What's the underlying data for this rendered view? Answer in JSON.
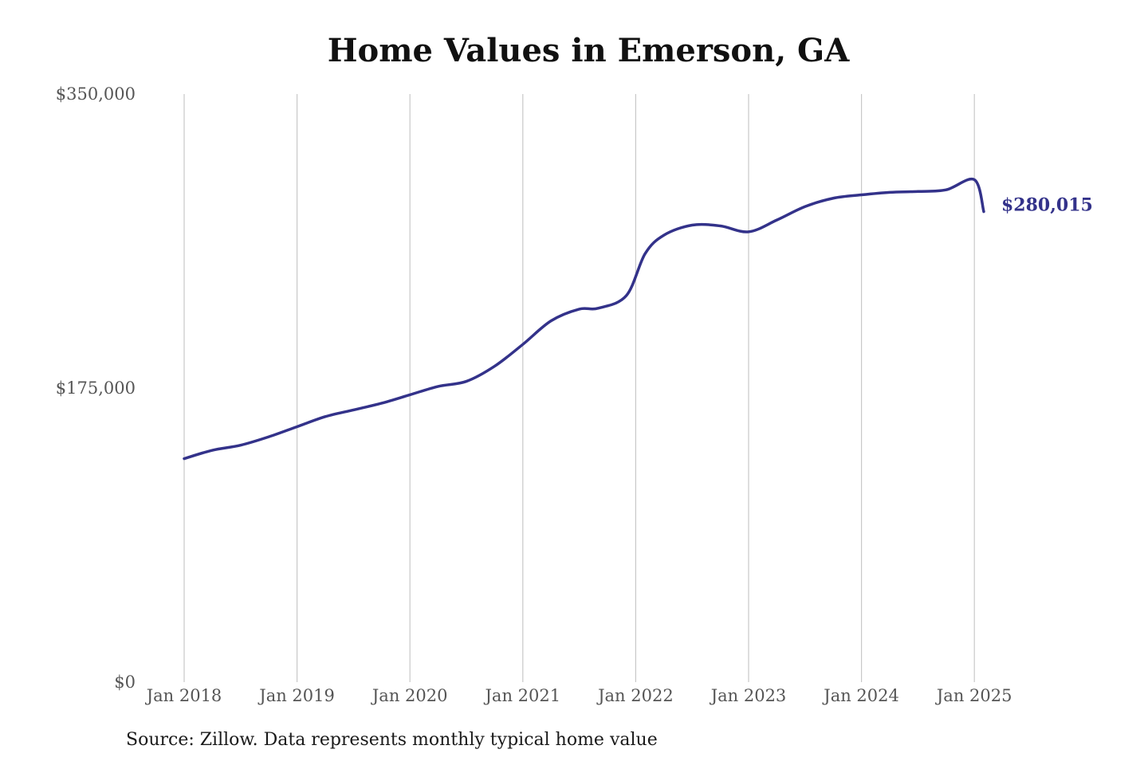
{
  "chart_data": {
    "type": "line",
    "title": "Home Values in Emerson, GA",
    "source": "Source: Zillow. Data represents monthly typical home value",
    "ylim": [
      0,
      350000
    ],
    "y_ticks": [
      {
        "value": 0,
        "label": "$0"
      },
      {
        "value": 175000,
        "label": "$175,000"
      },
      {
        "value": 350000,
        "label": "$350,000"
      }
    ],
    "x_ticks": [
      "Jan 2018",
      "Jan 2019",
      "Jan 2020",
      "Jan 2021",
      "Jan 2022",
      "Jan 2023",
      "Jan 2024",
      "Jan 2025"
    ],
    "grid": {
      "vertical": true,
      "horizontal": false
    },
    "line_color": "#33328a",
    "end_label": "$280,015",
    "series": [
      {
        "x": [
          "2018-01",
          "2018-04",
          "2018-07",
          "2018-10",
          "2019-01",
          "2019-04",
          "2019-07",
          "2019-10",
          "2020-01",
          "2020-04",
          "2020-07",
          "2020-10",
          "2021-01",
          "2021-04",
          "2021-07",
          "2021-09",
          "2021-12",
          "2022-02",
          "2022-04",
          "2022-07",
          "2022-10",
          "2023-01",
          "2023-04",
          "2023-07",
          "2023-10",
          "2024-01",
          "2024-04",
          "2024-07",
          "2024-10",
          "2025-01",
          "2025-02"
        ],
        "values": [
          133000,
          138000,
          141000,
          146000,
          152000,
          158000,
          162000,
          166000,
          171000,
          176000,
          179000,
          188000,
          201000,
          215000,
          222000,
          222500,
          230000,
          255000,
          266000,
          272000,
          271500,
          268000,
          275000,
          283000,
          288000,
          290000,
          291500,
          292000,
          293000,
          299000,
          280015
        ]
      }
    ]
  }
}
